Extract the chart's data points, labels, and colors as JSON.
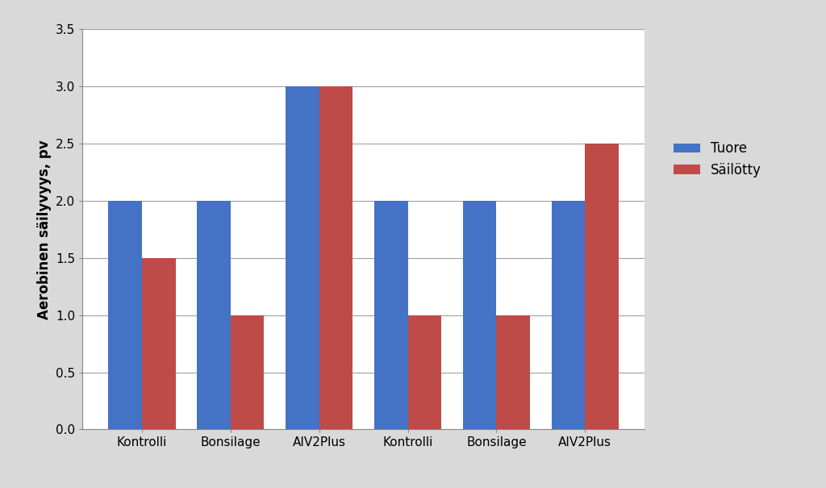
{
  "categories": [
    "Kontrolli",
    "Bonsilage",
    "AIV2Plus",
    "Kontrolli",
    "Bonsilage",
    "AIV2Plus"
  ],
  "tuore_values": [
    2.0,
    2.0,
    3.0,
    2.0,
    2.0,
    2.0
  ],
  "sailotty_values": [
    1.5,
    1.0,
    3.0,
    1.0,
    1.0,
    2.5
  ],
  "tuore_color": "#4472C4",
  "sailotty_color": "#BE4B48",
  "ylabel": "Aerobinen säilyvyys, pv",
  "ylim": [
    0,
    3.5
  ],
  "yticks": [
    0.0,
    0.5,
    1.0,
    1.5,
    2.0,
    2.5,
    3.0,
    3.5
  ],
  "legend_tuore": "Tuore",
  "legend_sailotty": "Säilötty",
  "bar_width": 0.38,
  "outer_bg_color": "#D9D9D9",
  "plot_bg_color": "#FFFFFF",
  "grid_color": "#A0A0A0",
  "label_fontsize": 12,
  "tick_fontsize": 11,
  "legend_fontsize": 12
}
